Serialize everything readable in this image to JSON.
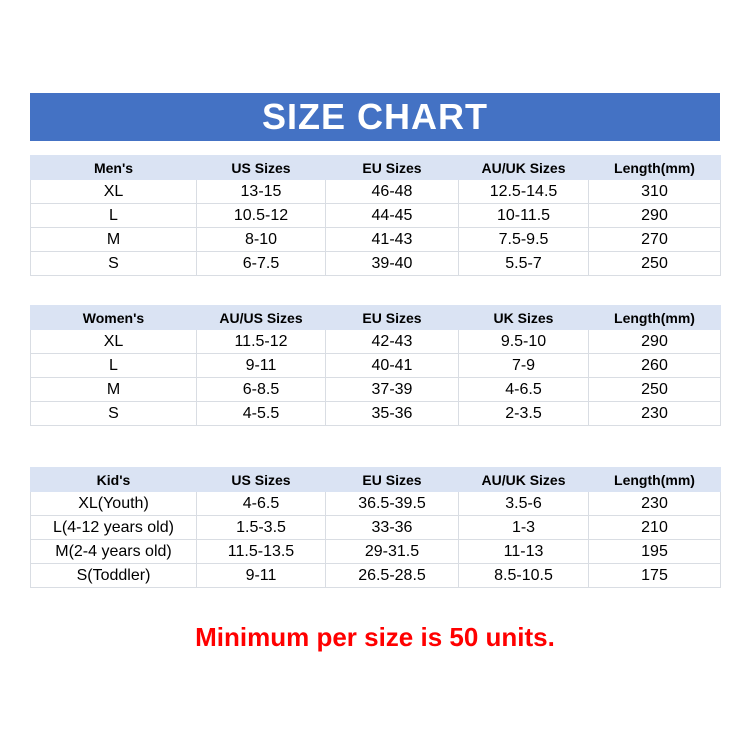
{
  "title": "SIZE CHART",
  "tables": [
    {
      "headers": [
        "Men's",
        "US Sizes",
        "EU Sizes",
        "AU/UK Sizes",
        "Length(mm)"
      ],
      "rows": [
        [
          "XL",
          "13-15",
          "46-48",
          "12.5-14.5",
          "310"
        ],
        [
          "L",
          "10.5-12",
          "44-45",
          "10-11.5",
          "290"
        ],
        [
          "M",
          "8-10",
          "41-43",
          "7.5-9.5",
          "270"
        ],
        [
          "S",
          "6-7.5",
          "39-40",
          "5.5-7",
          "250"
        ]
      ]
    },
    {
      "headers": [
        "Women's",
        "AU/US Sizes",
        "EU Sizes",
        "UK Sizes",
        "Length(mm)"
      ],
      "rows": [
        [
          "XL",
          "11.5-12",
          "42-43",
          "9.5-10",
          "290"
        ],
        [
          "L",
          "9-11",
          "40-41",
          "7-9",
          "260"
        ],
        [
          "M",
          "6-8.5",
          "37-39",
          "4-6.5",
          "250"
        ],
        [
          "S",
          "4-5.5",
          "35-36",
          "2-3.5",
          "230"
        ]
      ]
    },
    {
      "headers": [
        "Kid's",
        "US Sizes",
        "EU Sizes",
        "AU/UK Sizes",
        "Length(mm)"
      ],
      "rows": [
        [
          "XL(Youth)",
          "4-6.5",
          "36.5-39.5",
          "3.5-6",
          "230"
        ],
        [
          "L(4-12 years old)",
          "1.5-3.5",
          "33-36",
          "1-3",
          "210"
        ],
        [
          "M(2-4 years old)",
          "11.5-13.5",
          "29-31.5",
          "11-13",
          "195"
        ],
        [
          "S(Toddler)",
          "9-11",
          "26.5-28.5",
          "8.5-10.5",
          "175"
        ]
      ]
    }
  ],
  "note": "Minimum per size is 50 units.",
  "colors": {
    "title_bg": "#4472c4",
    "header_bg": "#dae3f3",
    "note": "#ff0000"
  }
}
